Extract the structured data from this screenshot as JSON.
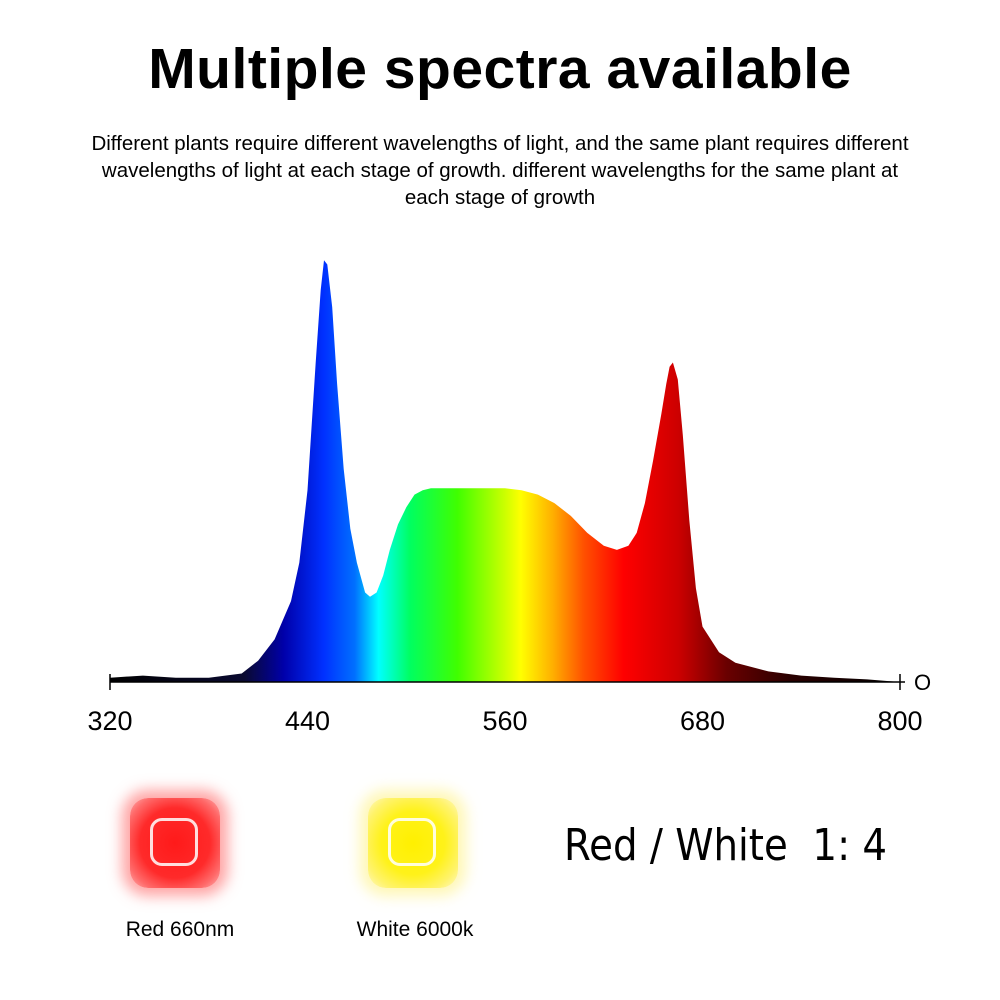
{
  "header": {
    "title": "Multiple spectra available",
    "subtitle": "Different plants require different wavelengths of light, and the same plant requires different wavelengths of light at each stage of growth. different wavelengths for the same plant at each stage of growth"
  },
  "chart_data": {
    "type": "area",
    "title": "",
    "xlabel": "",
    "ylabel": "",
    "xlim": [
      320,
      800
    ],
    "ylim": [
      0,
      1.0
    ],
    "xticks": [
      "320",
      "440",
      "560",
      "680",
      "800"
    ],
    "axis_end_label": "O",
    "grid": false,
    "legend": "none",
    "fill": "visible-spectrum color gradient by wavelength",
    "series": [
      {
        "x": [
          320,
          340,
          360,
          380,
          400,
          410,
          420,
          430,
          435,
          440,
          445,
          448,
          450,
          452,
          455,
          458,
          462,
          466,
          470,
          475,
          478,
          482,
          486,
          490,
          495,
          500,
          505,
          510,
          515,
          520,
          530,
          540,
          550,
          560,
          570,
          580,
          590,
          600,
          610,
          620,
          628,
          635,
          640,
          645,
          650,
          655,
          658,
          660,
          662,
          665,
          668,
          672,
          676,
          680,
          690,
          700,
          720,
          740,
          760,
          780,
          800
        ],
        "values": [
          0.01,
          0.015,
          0.01,
          0.01,
          0.02,
          0.05,
          0.1,
          0.19,
          0.28,
          0.45,
          0.75,
          0.92,
          0.99,
          0.98,
          0.88,
          0.7,
          0.5,
          0.36,
          0.28,
          0.21,
          0.2,
          0.21,
          0.25,
          0.31,
          0.37,
          0.41,
          0.44,
          0.45,
          0.455,
          0.455,
          0.455,
          0.455,
          0.455,
          0.455,
          0.45,
          0.44,
          0.42,
          0.39,
          0.35,
          0.32,
          0.31,
          0.32,
          0.35,
          0.42,
          0.52,
          0.63,
          0.7,
          0.74,
          0.75,
          0.71,
          0.58,
          0.38,
          0.22,
          0.13,
          0.07,
          0.045,
          0.025,
          0.015,
          0.01,
          0.006,
          0.0
        ]
      }
    ]
  },
  "legend_items": [
    {
      "label": "Red 660nm",
      "color": "#ff1a1a"
    },
    {
      "label": "White 6000k",
      "color": "#fff000"
    }
  ],
  "ratio_text": "Red / White  1: 4"
}
